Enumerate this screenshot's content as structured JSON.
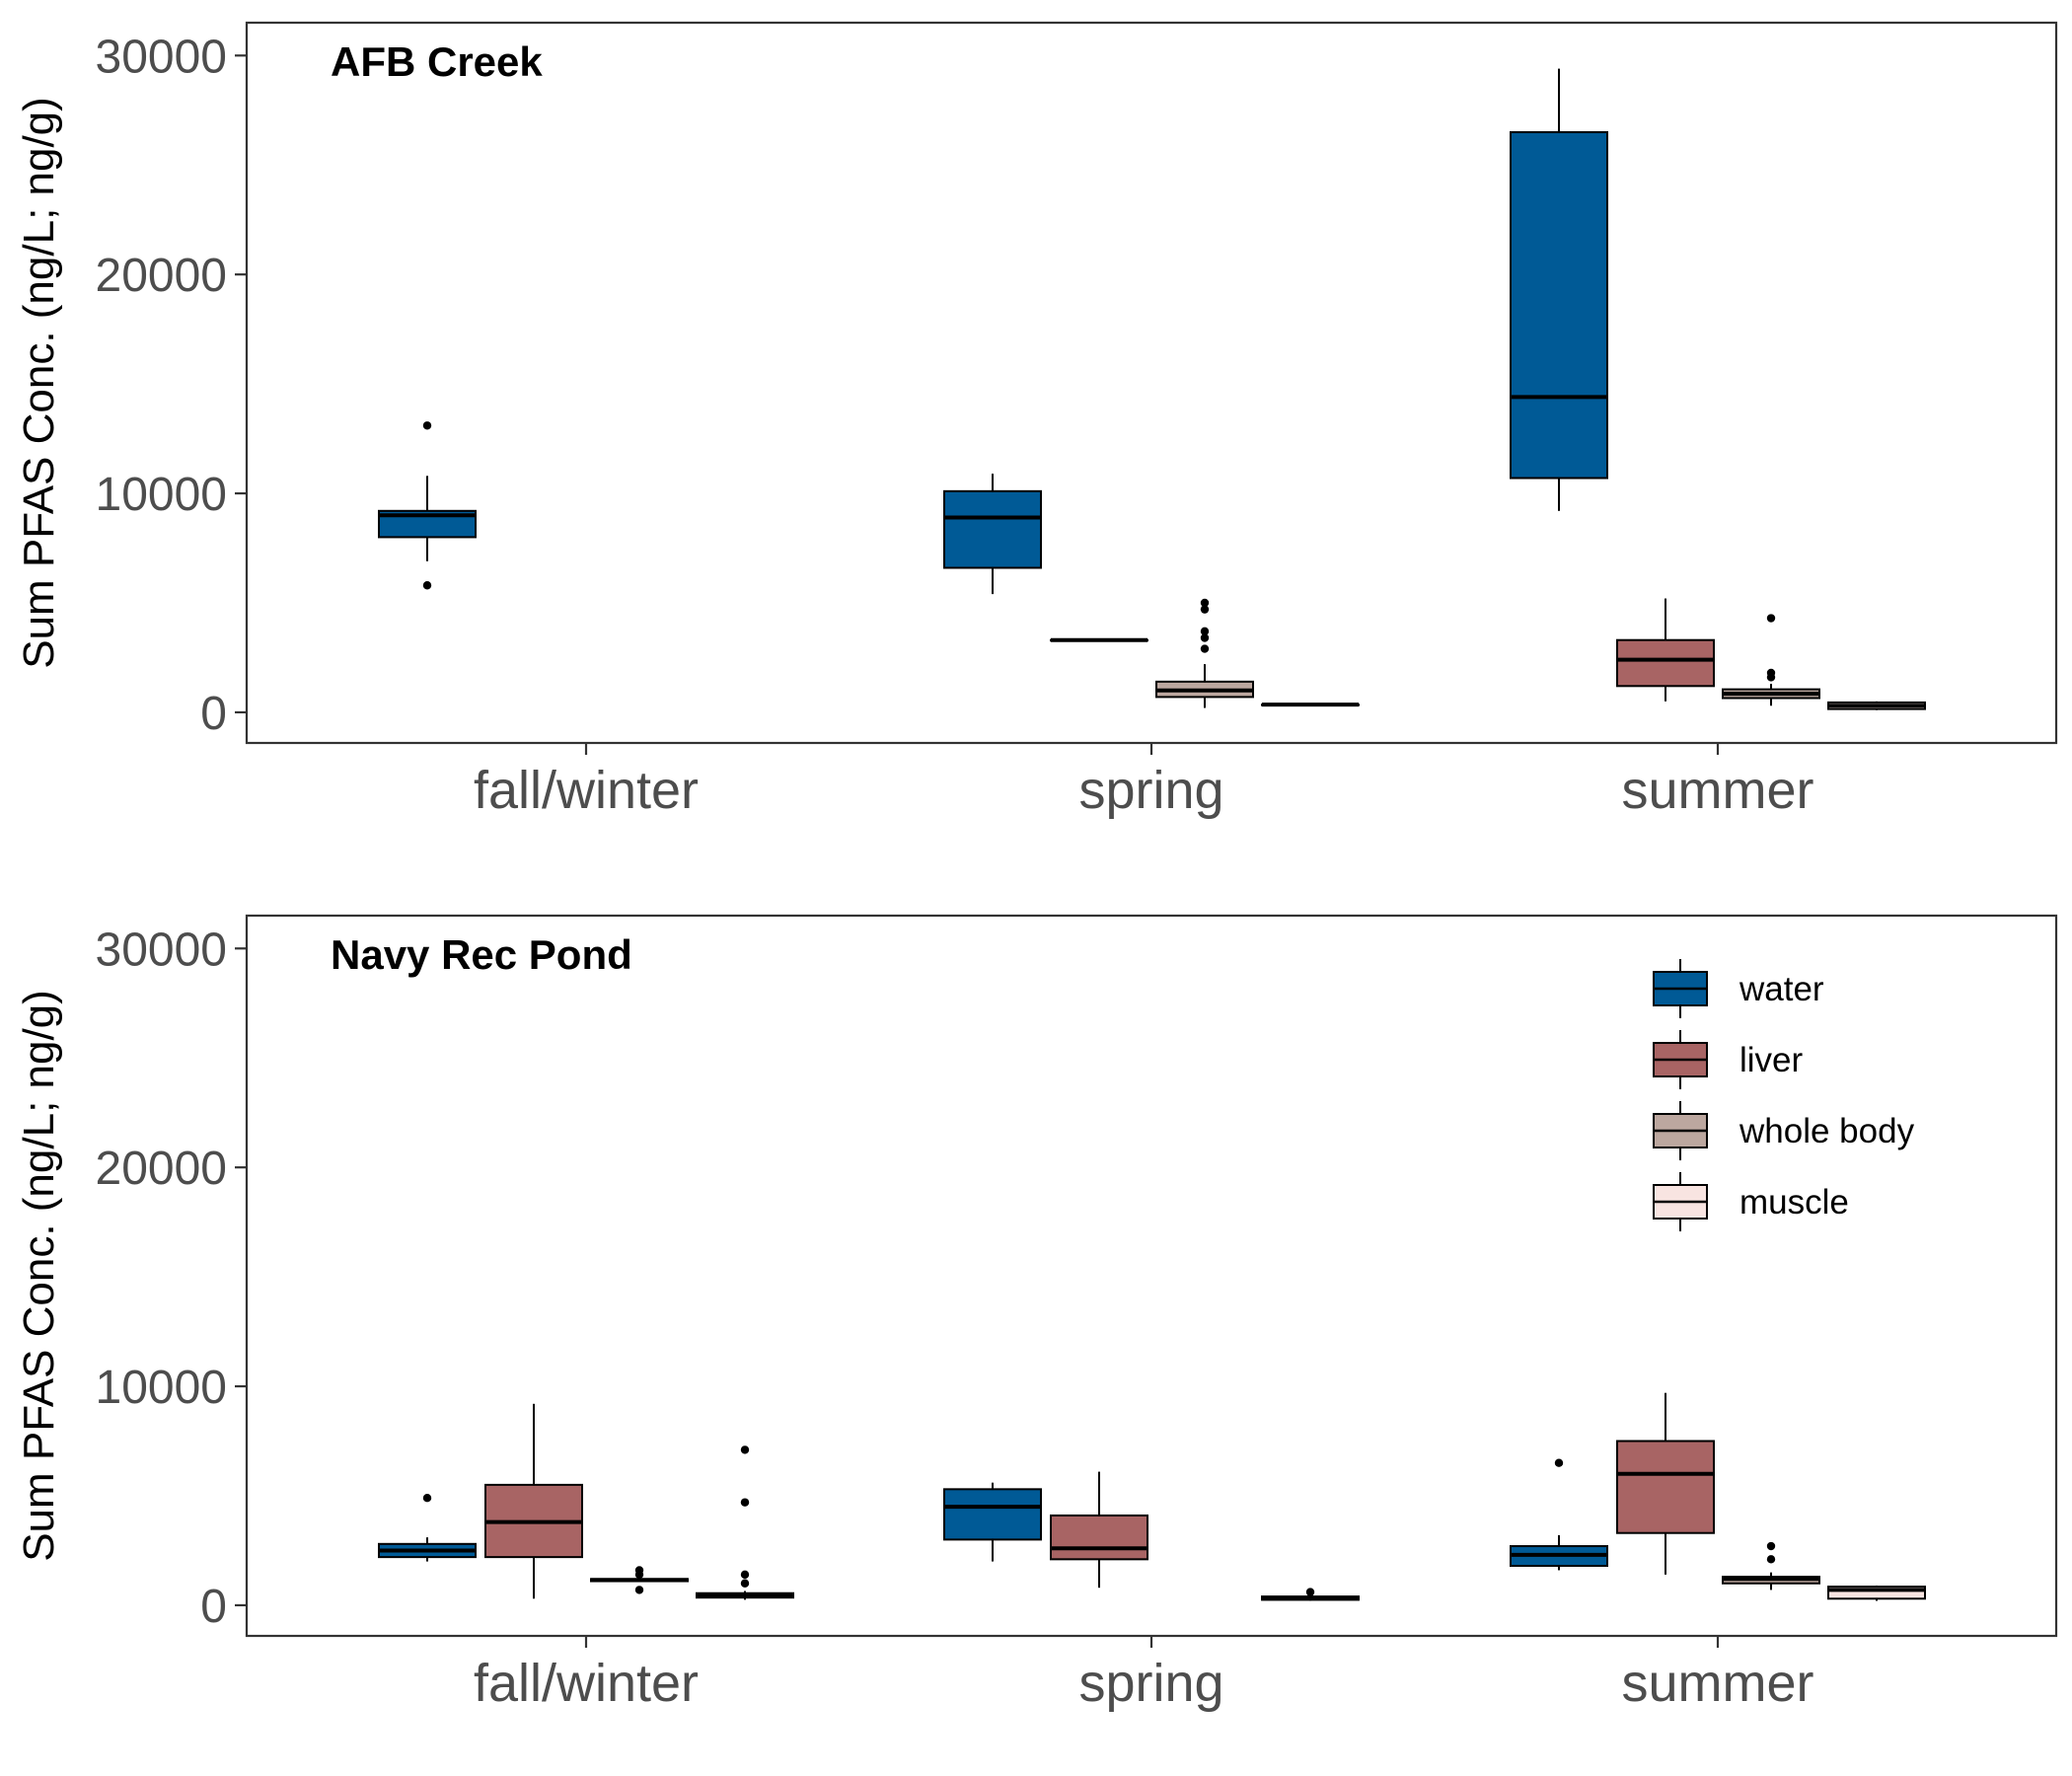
{
  "colors": {
    "water": "#005a96",
    "liver": "#a86464",
    "whole body": "#bca79f",
    "muscle": "#f8e4e1",
    "stroke": "#000000",
    "frame": "#333333",
    "tick_text": "#4d4d4d"
  },
  "chart_data": {
    "type": "boxplot",
    "ylabel": "Sum PFAS Conc. (ng/L; ng/g)",
    "ylim": [
      -1400,
      31500
    ],
    "yticks": [
      0,
      10000,
      20000,
      30000
    ],
    "categories": [
      "fall/winter",
      "spring",
      "summer"
    ],
    "legend": {
      "position": "top-right of bottom panel",
      "entries": [
        "water",
        "liver",
        "whole body",
        "muscle"
      ]
    },
    "grid": false,
    "panels": [
      {
        "title": "AFB Creek",
        "boxes": [
          {
            "category": "fall/winter",
            "series": "water",
            "whisker_low": 6900,
            "q1": 8000,
            "median": 9000,
            "q3": 9200,
            "whisker_high": 10800,
            "outliers": [
              5800,
              13100
            ]
          },
          {
            "category": "spring",
            "series": "water",
            "whisker_low": 5400,
            "q1": 6600,
            "median": 8900,
            "q3": 10100,
            "whisker_high": 10900,
            "outliers": []
          },
          {
            "category": "spring",
            "series": "liver",
            "whisker_low": 3300,
            "q1": 3300,
            "median": 3300,
            "q3": 3300,
            "whisker_high": 3300,
            "outliers": []
          },
          {
            "category": "spring",
            "series": "whole body",
            "whisker_low": 200,
            "q1": 700,
            "median": 1000,
            "q3": 1400,
            "whisker_high": 2200,
            "outliers": [
              2900,
              3400,
              3700,
              4700,
              5000
            ]
          },
          {
            "category": "spring",
            "series": "muscle",
            "whisker_low": 350,
            "q1": 350,
            "median": 350,
            "q3": 350,
            "whisker_high": 350,
            "outliers": []
          },
          {
            "category": "summer",
            "series": "water",
            "whisker_low": 9200,
            "q1": 10700,
            "median": 14400,
            "q3": 26500,
            "whisker_high": 29400,
            "outliers": []
          },
          {
            "category": "summer",
            "series": "liver",
            "whisker_low": 500,
            "q1": 1200,
            "median": 2400,
            "q3": 3300,
            "whisker_high": 5200,
            "outliers": []
          },
          {
            "category": "summer",
            "series": "whole body",
            "whisker_low": 300,
            "q1": 650,
            "median": 850,
            "q3": 1050,
            "whisker_high": 1300,
            "outliers": [
              1600,
              1800,
              4300
            ]
          },
          {
            "category": "summer",
            "series": "muscle",
            "whisker_low": 100,
            "q1": 150,
            "median": 300,
            "q3": 450,
            "whisker_high": 500,
            "outliers": []
          }
        ]
      },
      {
        "title": "Navy Rec Pond",
        "boxes": [
          {
            "category": "fall/winter",
            "series": "water",
            "whisker_low": 2000,
            "q1": 2200,
            "median": 2500,
            "q3": 2800,
            "whisker_high": 3100,
            "outliers": [
              4900
            ]
          },
          {
            "category": "fall/winter",
            "series": "liver",
            "whisker_low": 300,
            "q1": 2200,
            "median": 3800,
            "q3": 5500,
            "whisker_high": 9200,
            "outliers": []
          },
          {
            "category": "fall/winter",
            "series": "whole body",
            "whisker_low": 1100,
            "q1": 1100,
            "median": 1150,
            "q3": 1200,
            "whisker_high": 1200,
            "outliers": [
              700,
              1400,
              1600
            ]
          },
          {
            "category": "fall/winter",
            "series": "muscle",
            "whisker_low": 250,
            "q1": 350,
            "median": 450,
            "q3": 550,
            "whisker_high": 650,
            "outliers": [
              1000,
              1400,
              4700,
              7100
            ]
          },
          {
            "category": "spring",
            "series": "water",
            "whisker_low": 2000,
            "q1": 3000,
            "median": 4500,
            "q3": 5300,
            "whisker_high": 5600,
            "outliers": []
          },
          {
            "category": "spring",
            "series": "liver",
            "whisker_low": 800,
            "q1": 2100,
            "median": 2600,
            "q3": 4100,
            "whisker_high": 6100,
            "outliers": []
          },
          {
            "category": "spring",
            "series": "muscle",
            "whisker_low": 200,
            "q1": 250,
            "median": 300,
            "q3": 400,
            "whisker_high": 450,
            "outliers": [
              600
            ]
          },
          {
            "category": "summer",
            "series": "water",
            "whisker_low": 1600,
            "q1": 1800,
            "median": 2300,
            "q3": 2700,
            "whisker_high": 3200,
            "outliers": [
              6500
            ]
          },
          {
            "category": "summer",
            "series": "liver",
            "whisker_low": 1400,
            "q1": 3300,
            "median": 6000,
            "q3": 7500,
            "whisker_high": 9700,
            "outliers": []
          },
          {
            "category": "summer",
            "series": "whole body",
            "whisker_low": 700,
            "q1": 1000,
            "median": 1200,
            "q3": 1300,
            "whisker_high": 1500,
            "outliers": [
              2100,
              2700
            ]
          },
          {
            "category": "summer",
            "series": "muscle",
            "whisker_low": 200,
            "q1": 300,
            "median": 700,
            "q3": 850,
            "whisker_high": 900,
            "outliers": []
          }
        ]
      }
    ]
  }
}
